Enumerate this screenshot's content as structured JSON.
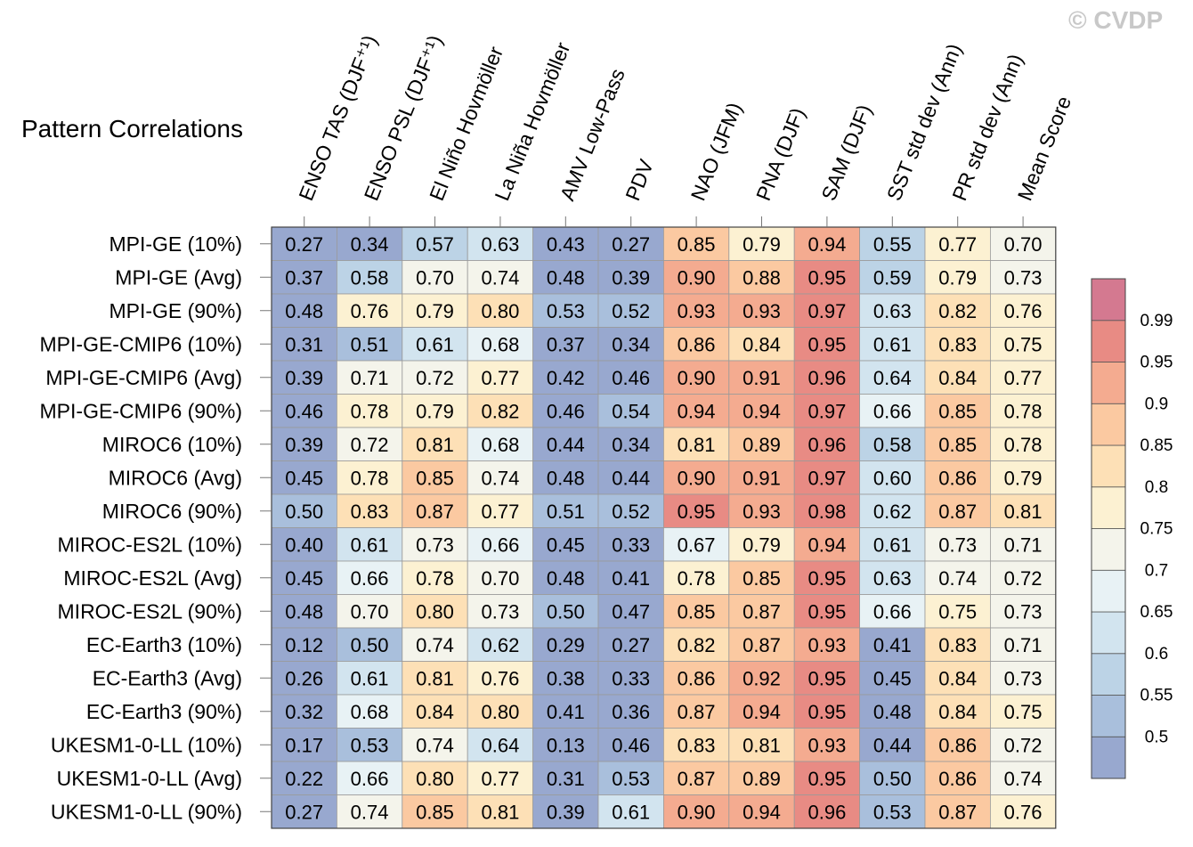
{
  "chart_data": {
    "type": "heatmap",
    "title": "Pattern Correlations",
    "credit": "© CVDP",
    "columns": [
      "ENSO TAS (DJF⁺¹)",
      "ENSO PSL (DJF⁺¹)",
      "El Niño Hovmöller",
      "La Niña Hovmöller",
      "AMV Low-Pass",
      "PDV",
      "NAO (JFM)",
      "PNA (DJF)",
      "SAM (DJF)",
      "SST std dev (Ann)",
      "PR std dev (Ann)",
      "Mean Score"
    ],
    "rows": [
      "MPI-GE (10%)",
      "MPI-GE (Avg)",
      "MPI-GE (90%)",
      "MPI-GE-CMIP6 (10%)",
      "MPI-GE-CMIP6 (Avg)",
      "MPI-GE-CMIP6 (90%)",
      "MIROC6 (10%)",
      "MIROC6 (Avg)",
      "MIROC6 (90%)",
      "MIROC-ES2L (10%)",
      "MIROC-ES2L (Avg)",
      "MIROC-ES2L (90%)",
      "EC-Earth3 (10%)",
      "EC-Earth3 (Avg)",
      "EC-Earth3 (90%)",
      "UKESM1-0-LL (10%)",
      "UKESM1-0-LL (Avg)",
      "UKESM1-0-LL (90%)"
    ],
    "values": [
      [
        "0.27",
        "0.34",
        "0.57",
        "0.63",
        "0.43",
        "0.27",
        "0.85",
        "0.79",
        "0.94",
        "0.55",
        "0.77",
        "0.70"
      ],
      [
        "0.37",
        "0.58",
        "0.70",
        "0.74",
        "0.48",
        "0.39",
        "0.90",
        "0.88",
        "0.95",
        "0.59",
        "0.79",
        "0.73"
      ],
      [
        "0.48",
        "0.76",
        "0.79",
        "0.80",
        "0.53",
        "0.52",
        "0.93",
        "0.93",
        "0.97",
        "0.63",
        "0.82",
        "0.76"
      ],
      [
        "0.31",
        "0.51",
        "0.61",
        "0.68",
        "0.37",
        "0.34",
        "0.86",
        "0.84",
        "0.95",
        "0.61",
        "0.83",
        "0.75"
      ],
      [
        "0.39",
        "0.71",
        "0.72",
        "0.77",
        "0.42",
        "0.46",
        "0.90",
        "0.91",
        "0.96",
        "0.64",
        "0.84",
        "0.77"
      ],
      [
        "0.46",
        "0.78",
        "0.79",
        "0.82",
        "0.46",
        "0.54",
        "0.94",
        "0.94",
        "0.97",
        "0.66",
        "0.85",
        "0.78"
      ],
      [
        "0.39",
        "0.72",
        "0.81",
        "0.68",
        "0.44",
        "0.34",
        "0.81",
        "0.89",
        "0.96",
        "0.58",
        "0.85",
        "0.78"
      ],
      [
        "0.45",
        "0.78",
        "0.85",
        "0.74",
        "0.48",
        "0.44",
        "0.90",
        "0.91",
        "0.97",
        "0.60",
        "0.86",
        "0.79"
      ],
      [
        "0.50",
        "0.83",
        "0.87",
        "0.77",
        "0.51",
        "0.52",
        "0.95",
        "0.93",
        "0.98",
        "0.62",
        "0.87",
        "0.81"
      ],
      [
        "0.40",
        "0.61",
        "0.73",
        "0.66",
        "0.45",
        "0.33",
        "0.67",
        "0.79",
        "0.94",
        "0.61",
        "0.73",
        "0.71"
      ],
      [
        "0.45",
        "0.66",
        "0.78",
        "0.70",
        "0.48",
        "0.41",
        "0.78",
        "0.85",
        "0.95",
        "0.63",
        "0.74",
        "0.72"
      ],
      [
        "0.48",
        "0.70",
        "0.80",
        "0.73",
        "0.50",
        "0.47",
        "0.85",
        "0.87",
        "0.95",
        "0.66",
        "0.75",
        "0.73"
      ],
      [
        "0.12",
        "0.50",
        "0.74",
        "0.62",
        "0.29",
        "0.27",
        "0.82",
        "0.87",
        "0.93",
        "0.41",
        "0.83",
        "0.71"
      ],
      [
        "0.26",
        "0.61",
        "0.81",
        "0.76",
        "0.38",
        "0.33",
        "0.86",
        "0.92",
        "0.95",
        "0.45",
        "0.84",
        "0.73"
      ],
      [
        "0.32",
        "0.68",
        "0.84",
        "0.80",
        "0.41",
        "0.36",
        "0.87",
        "0.94",
        "0.95",
        "0.48",
        "0.84",
        "0.75"
      ],
      [
        "0.17",
        "0.53",
        "0.74",
        "0.64",
        "0.13",
        "0.46",
        "0.83",
        "0.81",
        "0.93",
        "0.44",
        "0.86",
        "0.72"
      ],
      [
        "0.22",
        "0.66",
        "0.80",
        "0.77",
        "0.31",
        "0.53",
        "0.87",
        "0.89",
        "0.95",
        "0.50",
        "0.86",
        "0.74"
      ],
      [
        "0.27",
        "0.74",
        "0.85",
        "0.81",
        "0.39",
        "0.61",
        "0.90",
        "0.94",
        "0.96",
        "0.53",
        "0.87",
        "0.76"
      ]
    ],
    "colorbar": {
      "ticks": [
        "0.5",
        "0.55",
        "0.6",
        "0.65",
        "0.7",
        "0.75",
        "0.8",
        "0.85",
        "0.9",
        "0.95",
        "0.99"
      ],
      "levels": [
        0.5,
        0.55,
        0.6,
        0.65,
        0.7,
        0.75,
        0.8,
        0.85,
        0.9,
        0.95,
        0.99
      ],
      "colors": [
        "#98a8cf",
        "#a9bfdc",
        "#bcd3e6",
        "#d2e4ef",
        "#e8f2f5",
        "#f4f4eb",
        "#fcf1d2",
        "#fde0b6",
        "#fbc9a1",
        "#f4ab90",
        "#e88b84",
        "#d47990"
      ]
    }
  }
}
